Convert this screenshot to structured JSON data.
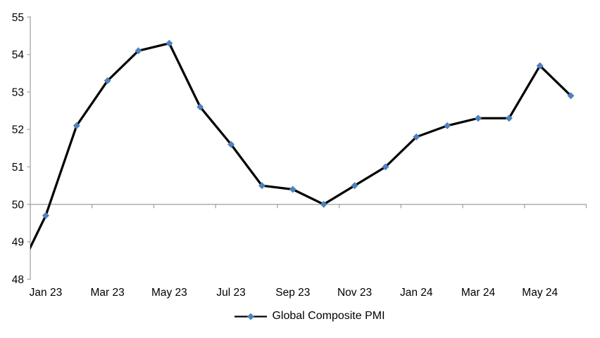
{
  "chart_data": {
    "type": "line",
    "title": "",
    "legend": [
      {
        "label": "Global Composite PMI",
        "position": "bottom"
      }
    ],
    "categories": [
      "Jan 23",
      "Feb 23",
      "Mar 23",
      "Apr 23",
      "May 23",
      "Jun 23",
      "Jul 23",
      "Aug 23",
      "Sep 23",
      "Oct 23",
      "Nov 23",
      "Dec 23",
      "Jan 24",
      "Feb 24",
      "Mar 24",
      "Apr 24",
      "May 24",
      "Jun 24"
    ],
    "series": [
      {
        "name": "Global Composite PMI",
        "values": [
          49.7,
          52.1,
          53.3,
          54.1,
          54.3,
          52.6,
          51.6,
          50.5,
          50.4,
          50.0,
          50.5,
          51.0,
          51.8,
          52.1,
          52.3,
          52.3,
          53.7,
          52.9
        ]
      }
    ],
    "lead_in": {
      "visible_edge_value": 48.8,
      "implied_prev_month_value": 48.0,
      "note": "line enters plot from left edge below first marker"
    },
    "x_tick_labels": [
      "Jan 23",
      "Mar 23",
      "May 23",
      "Jul 23",
      "Sep 23",
      "Nov 23",
      "Jan 24",
      "Mar 24",
      "May 24"
    ],
    "x_label_interval": 2,
    "y_ticks": [
      48,
      49,
      50,
      51,
      52,
      53,
      54,
      55
    ],
    "ylim": [
      48,
      55
    ],
    "xlabel": "",
    "ylabel": "",
    "x_axis_crosses_at": 50,
    "grid": "off",
    "marker_shape": "diamond",
    "colors": {
      "line": "#000000",
      "marker": "#4F81BD",
      "axis": "#A6A6A6",
      "text": "#000000"
    }
  }
}
